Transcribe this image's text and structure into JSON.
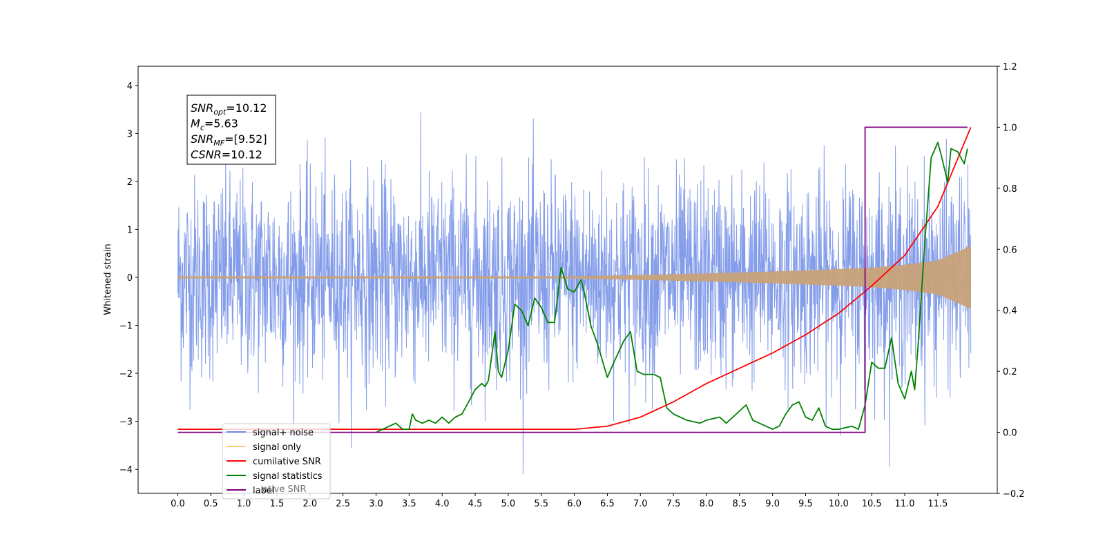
{
  "chart_data": {
    "type": "line",
    "ylabel": "Whitened strain",
    "xlim": [
      -0.6,
      12.4
    ],
    "ylim_left": [
      -4.5,
      4.4
    ],
    "ylim_right": [
      -0.2,
      1.2
    ],
    "x_ticks": [
      "0.0",
      "0.5",
      "1.0",
      "1.5",
      "2.0",
      "2.5",
      "3.0",
      "3.5",
      "4.0",
      "4.5",
      "5.0",
      "5.5",
      "6.0",
      "6.5",
      "7.0",
      "7.5",
      "8.0",
      "8.5",
      "9.0",
      "9.5",
      "10.0",
      "10.5",
      "11.0",
      "11.5"
    ],
    "y_left_ticks": [
      "−4",
      "−3",
      "−2",
      "−1",
      "0",
      "1",
      "2",
      "3",
      "4"
    ],
    "y_right_ticks": [
      "−0.2",
      "0.0",
      "0.2",
      "0.4",
      "0.6",
      "0.8",
      "1.0",
      "1.2"
    ],
    "grid": false,
    "legend_location": "lower-left",
    "colors": {
      "signal_noise": "#6f8ce6",
      "signal_only": "#c8a27a",
      "cumulative_snr": "#ff0000",
      "signal_statistics": "#008000",
      "label": "#800080"
    },
    "series": [
      {
        "name": "signal+ noise",
        "axis": "left",
        "description_range": "random noise in approximately [-4.1, 4.0], x from 0.0 to 12.0"
      },
      {
        "name": "signal only",
        "axis": "left",
        "envelope_x": [
          0.0,
          6.0,
          7.0,
          8.0,
          9.0,
          10.0,
          10.5,
          11.0,
          11.5,
          12.0
        ],
        "envelope_amplitude": [
          0.02,
          0.02,
          0.05,
          0.08,
          0.12,
          0.17,
          0.2,
          0.26,
          0.35,
          0.65
        ]
      },
      {
        "name": "cumilative SNR",
        "axis": "right",
        "x": [
          0.0,
          6.0,
          6.5,
          7.0,
          7.5,
          8.0,
          8.5,
          9.0,
          9.5,
          10.0,
          10.5,
          11.0,
          11.5,
          12.0
        ],
        "y": [
          0.01,
          0.01,
          0.02,
          0.05,
          0.1,
          0.16,
          0.21,
          0.26,
          0.32,
          0.39,
          0.48,
          0.58,
          0.74,
          1.0
        ]
      },
      {
        "name": "signal statistics",
        "axis": "right",
        "x": [
          3.0,
          3.1,
          3.2,
          3.3,
          3.4,
          3.5,
          3.55,
          3.6,
          3.7,
          3.8,
          3.9,
          4.0,
          4.1,
          4.2,
          4.3,
          4.4,
          4.5,
          4.6,
          4.65,
          4.7,
          4.8,
          4.85,
          4.9,
          5.0,
          5.1,
          5.2,
          5.3,
          5.4,
          5.5,
          5.6,
          5.7,
          5.8,
          5.9,
          6.0,
          6.1,
          6.15,
          6.25,
          6.35,
          6.5,
          6.6,
          6.75,
          6.85,
          6.95,
          7.05,
          7.2,
          7.3,
          7.4,
          7.5,
          7.7,
          7.9,
          8.0,
          8.2,
          8.3,
          8.5,
          8.6,
          8.7,
          8.8,
          8.9,
          9.0,
          9.1,
          9.2,
          9.3,
          9.4,
          9.5,
          9.6,
          9.7,
          9.8,
          9.9,
          10.0,
          10.2,
          10.3,
          10.4,
          10.5,
          10.6,
          10.7,
          10.8,
          10.9,
          11.0,
          11.1,
          11.15,
          11.2,
          11.3,
          11.4,
          11.5,
          11.55,
          11.65,
          11.7,
          11.8,
          11.9,
          11.95
        ],
        "y": [
          0.0,
          0.01,
          0.02,
          0.03,
          0.01,
          0.01,
          0.06,
          0.04,
          0.03,
          0.04,
          0.03,
          0.05,
          0.03,
          0.05,
          0.06,
          0.1,
          0.14,
          0.16,
          0.15,
          0.17,
          0.33,
          0.2,
          0.18,
          0.27,
          0.42,
          0.4,
          0.35,
          0.44,
          0.41,
          0.36,
          0.36,
          0.54,
          0.47,
          0.46,
          0.5,
          0.46,
          0.35,
          0.29,
          0.18,
          0.23,
          0.3,
          0.33,
          0.2,
          0.19,
          0.19,
          0.18,
          0.08,
          0.06,
          0.04,
          0.03,
          0.04,
          0.05,
          0.03,
          0.07,
          0.09,
          0.04,
          0.03,
          0.02,
          0.01,
          0.02,
          0.06,
          0.09,
          0.1,
          0.05,
          0.04,
          0.08,
          0.02,
          0.01,
          0.01,
          0.02,
          0.01,
          0.09,
          0.23,
          0.21,
          0.21,
          0.31,
          0.16,
          0.11,
          0.2,
          0.14,
          0.28,
          0.61,
          0.9,
          0.95,
          0.91,
          0.82,
          0.93,
          0.92,
          0.88,
          0.93
        ]
      },
      {
        "name": "label",
        "axis": "right",
        "x": [
          0.0,
          10.4,
          10.4,
          11.95
        ],
        "y": [
          0.0,
          0.0,
          1.0,
          1.0
        ]
      }
    ],
    "legend": [
      {
        "label": "signal+ noise",
        "color": "#6f8ce6"
      },
      {
        "label": "signal only",
        "color": "#ffcc77"
      },
      {
        "label": "cumilative SNR",
        "color": "#ff0000"
      },
      {
        "label": "signal statistics",
        "color": "#008000"
      },
      {
        "label": "label",
        "color": "#800080"
      }
    ],
    "legend_overlap_text": "ative SNR",
    "annotation": {
      "lines": [
        {
          "var": "SNR",
          "sub": "opt",
          "value": "=10.12"
        },
        {
          "var": "M",
          "sub": "c",
          "value": "=5.63"
        },
        {
          "var": "SNR",
          "sub": "MF",
          "value": "=[9.52]"
        },
        {
          "var": "CSNR",
          "sub": "",
          "value": "=10.12"
        }
      ]
    }
  }
}
